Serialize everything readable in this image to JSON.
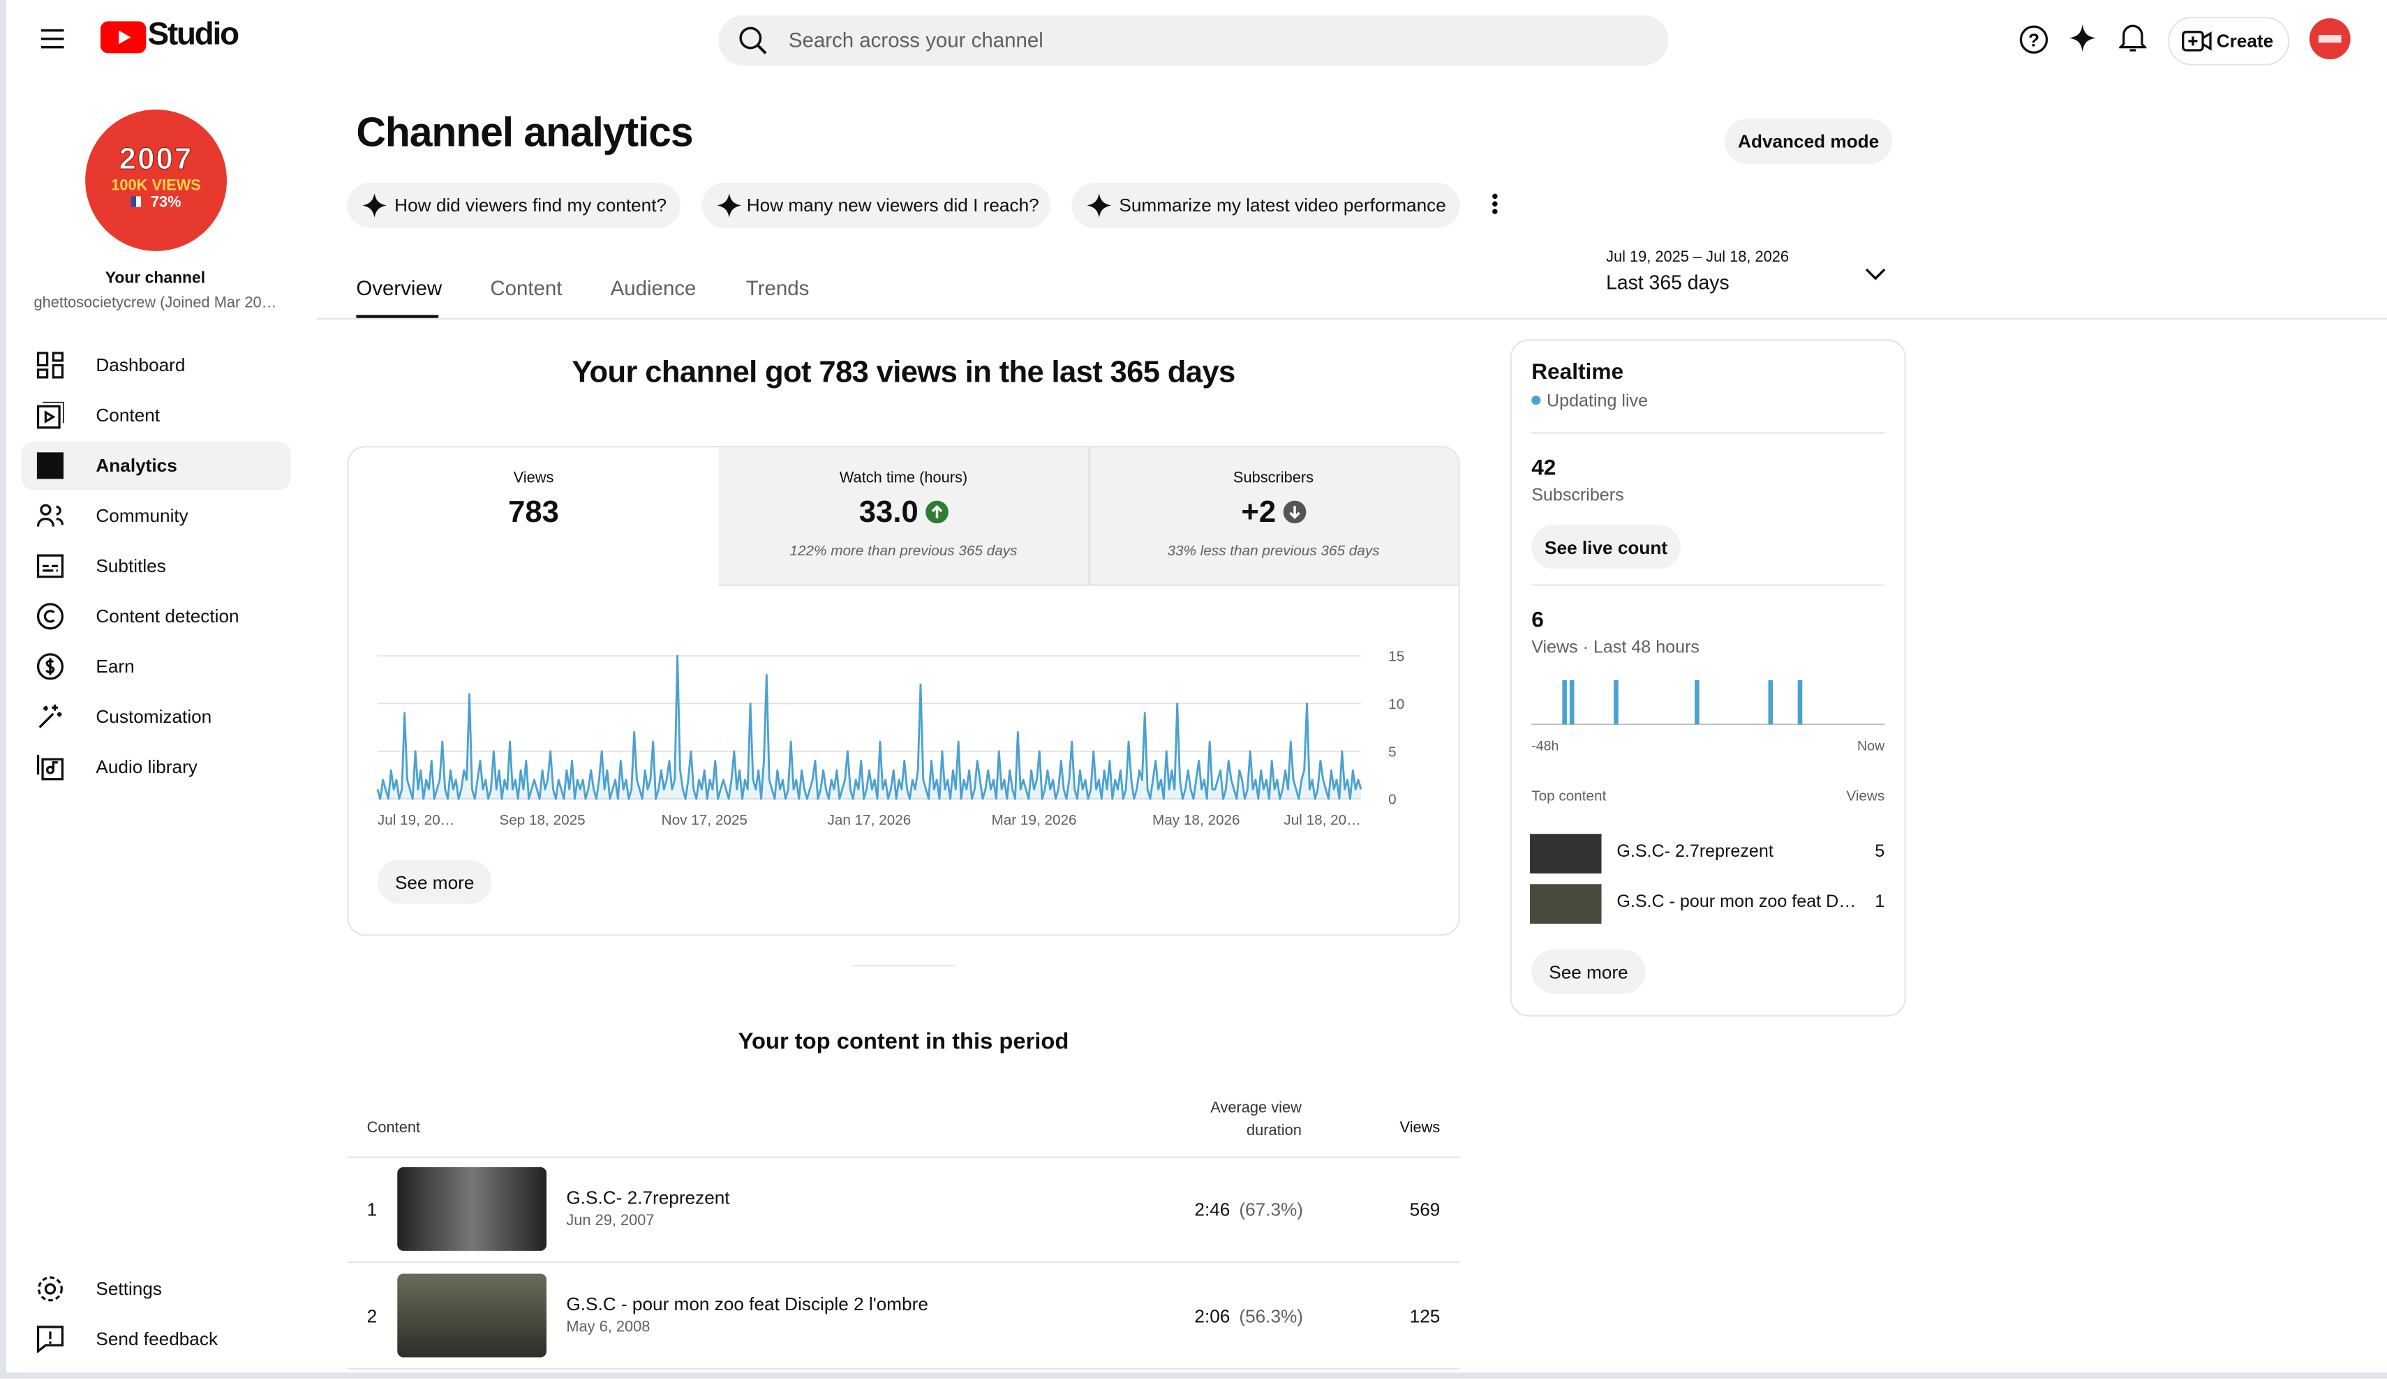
{
  "header": {
    "logo": "Studio",
    "search_placeholder": "Search across your channel",
    "create": "Create"
  },
  "sidebar": {
    "avatar": {
      "year": "2007",
      "badge": "100K VIEWS",
      "pct": "73%"
    },
    "channel_title": "Your channel",
    "channel_name": "ghettosocietycrew (Joined Mar 20…",
    "nav": [
      "Dashboard",
      "Content",
      "Analytics",
      "Community",
      "Subtitles",
      "Content detection",
      "Earn",
      "Customization",
      "Audio library"
    ],
    "footer_nav": [
      "Settings",
      "Send feedback"
    ]
  },
  "main": {
    "title": "Channel analytics",
    "advanced": "Advanced mode",
    "suggestions": [
      "How did viewers find my content?",
      "How many new viewers did I reach?",
      "Summarize my latest video performance"
    ],
    "tabs": [
      "Overview",
      "Content",
      "Audience",
      "Trends"
    ],
    "date_range": "Jul 19, 2025 – Jul 18, 2026",
    "period": "Last 365 days",
    "headline": "Your channel got 783 views in the last 365 days",
    "metrics": [
      {
        "label": "Views",
        "value": "783"
      },
      {
        "label": "Watch time (hours)",
        "value": "33.0",
        "note": "122% more than previous 365 days"
      },
      {
        "label": "Subscribers",
        "value": "+2",
        "note": "33% less than previous 365 days"
      }
    ],
    "see_more": "See more",
    "top_content": {
      "title": "Your top content in this period",
      "columns": [
        "Content",
        "Average view duration",
        "Views"
      ],
      "rows": [
        {
          "rank": 1,
          "title": "G.S.C- 2.7reprezent",
          "date": "Jun 29, 2007",
          "duration": "2:46",
          "percent": "(67.3%)",
          "views": 569
        },
        {
          "rank": 2,
          "title": "G.S.C - pour mon zoo feat Disciple 2 l'ombre",
          "date": "May 6, 2008",
          "duration": "2:06",
          "percent": "(56.3%)",
          "views": 125
        }
      ]
    }
  },
  "realtime": {
    "title": "Realtime",
    "status": "Updating live",
    "subscribers": 42,
    "subscribers_label": "Subscribers",
    "see_live": "See live count",
    "views": 6,
    "views_label": "Views · Last 48 hours",
    "top_title": "Top content",
    "top_views_label": "Views",
    "top": [
      {
        "title": "G.S.C- 2.7reprezent",
        "views": 5
      },
      {
        "title": "G.S.C - pour mon zoo feat D…",
        "views": 1
      }
    ],
    "see_more": "See more"
  },
  "chart_data": [
    {
      "type": "line",
      "color": "#4ba1cf",
      "ylim": [
        0,
        15
      ],
      "yticks": [
        0,
        5,
        10,
        15
      ],
      "grid": true,
      "categories": [
        "Jul 19, 20…",
        null,
        null,
        null,
        null,
        null,
        null,
        null,
        null,
        null,
        null,
        null,
        null,
        null,
        null,
        null,
        null,
        null,
        null,
        null,
        null,
        null,
        null,
        null,
        null,
        null,
        null,
        null,
        null,
        null,
        null,
        null,
        null,
        null,
        null,
        null,
        null,
        null,
        null,
        null,
        null,
        null,
        null,
        null,
        null,
        null,
        null,
        null,
        null,
        null,
        null,
        null,
        null,
        null,
        null,
        null,
        null,
        null,
        null,
        null,
        null,
        "Sep 18, 2025",
        null,
        null,
        null,
        null,
        null,
        null,
        null,
        null,
        null,
        null,
        null,
        null,
        null,
        null,
        null,
        null,
        null,
        null,
        null,
        null,
        null,
        null,
        null,
        null,
        null,
        null,
        null,
        null,
        null,
        null,
        null,
        null,
        null,
        null,
        null,
        null,
        null,
        null,
        null,
        null,
        null,
        null,
        null,
        null,
        null,
        null,
        null,
        null,
        null,
        null,
        null,
        null,
        null,
        null,
        null,
        null,
        null,
        null,
        null,
        "Nov 17, 2025",
        null,
        null,
        null,
        null,
        null,
        null,
        null,
        null,
        null,
        null,
        null,
        null,
        null,
        null,
        null,
        null,
        null,
        null,
        null,
        null,
        null,
        null,
        null,
        null,
        null,
        null,
        null,
        null,
        null,
        null,
        null,
        null,
        null,
        null,
        null,
        null,
        null,
        null,
        null,
        null,
        null,
        null,
        null,
        null,
        null,
        null,
        null,
        null,
        null,
        null,
        null,
        null,
        null,
        null,
        null,
        null,
        null,
        null,
        null,
        null,
        "Jan 17, 2026",
        null,
        null,
        null,
        null,
        null,
        null,
        null,
        null,
        null,
        null,
        null,
        null,
        null,
        null,
        null,
        null,
        null,
        null,
        null,
        null,
        null,
        null,
        null,
        null,
        null,
        null,
        null,
        null,
        null,
        null,
        null,
        null,
        null,
        null,
        null,
        null,
        null,
        null,
        null,
        null,
        null,
        null,
        null,
        null,
        null,
        null,
        null,
        null,
        null,
        null,
        null,
        null,
        null,
        null,
        null,
        null,
        null,
        null,
        null,
        null,
        "Mar 19, 2026",
        null,
        null,
        null,
        null,
        null,
        null,
        null,
        null,
        null,
        null,
        null,
        null,
        null,
        null,
        null,
        null,
        null,
        null,
        null,
        null,
        null,
        null,
        null,
        null,
        null,
        null,
        null,
        null,
        null,
        null,
        null,
        null,
        null,
        null,
        null,
        null,
        null,
        null,
        null,
        null,
        null,
        null,
        null,
        null,
        null,
        null,
        null,
        null,
        null,
        null,
        null,
        null,
        null,
        null,
        null,
        null,
        null,
        null,
        null,
        "May 18, 2026",
        null,
        null,
        null,
        null,
        null,
        null,
        null,
        null,
        null,
        null,
        null,
        null,
        null,
        null,
        null,
        null,
        null,
        null,
        null,
        null,
        null,
        null,
        null,
        null,
        null,
        null,
        null,
        null,
        null,
        null,
        null,
        null,
        null,
        null,
        null,
        null,
        null,
        null,
        null,
        null,
        null,
        null,
        null,
        null,
        null,
        null,
        null,
        null,
        null,
        null,
        null,
        null,
        null,
        null,
        null,
        null,
        null,
        null,
        null,
        null,
        "Jul 18, 20…"
      ],
      "values": [
        1,
        0,
        2,
        1,
        0,
        3,
        1,
        2,
        0,
        1,
        9,
        2,
        1,
        0,
        5,
        1,
        3,
        0,
        2,
        1,
        4,
        0,
        1,
        2,
        6,
        1,
        0,
        3,
        1,
        2,
        0,
        1,
        3,
        2,
        11,
        1,
        0,
        2,
        4,
        1,
        2,
        0,
        1,
        5,
        1,
        3,
        0,
        2,
        1,
        6,
        1,
        2,
        0,
        3,
        1,
        4,
        0,
        1,
        2,
        1,
        0,
        3,
        1,
        2,
        5,
        1,
        0,
        2,
        1,
        0,
        3,
        1,
        4,
        0,
        2,
        1,
        2,
        0,
        1,
        3,
        1,
        0,
        2,
        5,
        1,
        3,
        0,
        1,
        2,
        0,
        4,
        1,
        2,
        0,
        1,
        7,
        2,
        1,
        0,
        3,
        1,
        2,
        6,
        0,
        1,
        3,
        1,
        2,
        4,
        1,
        2,
        15,
        3,
        1,
        0,
        2,
        5,
        1,
        0,
        2,
        1,
        3,
        0,
        2,
        1,
        4,
        0,
        1,
        2,
        1,
        0,
        2,
        5,
        1,
        3,
        0,
        2,
        1,
        10,
        2,
        1,
        3,
        0,
        4,
        13,
        2,
        1,
        0,
        3,
        1,
        2,
        0,
        1,
        6,
        1,
        2,
        0,
        3,
        1,
        0,
        1,
        2,
        4,
        0,
        1,
        3,
        1,
        0,
        2,
        1,
        3,
        0,
        1,
        2,
        5,
        1,
        0,
        2,
        1,
        4,
        0,
        1,
        3,
        1,
        2,
        0,
        6,
        1,
        2,
        0,
        1,
        3,
        0,
        2,
        1,
        4,
        1,
        0,
        2,
        1,
        3,
        12,
        2,
        1,
        0,
        4,
        1,
        2,
        0,
        5,
        1,
        2,
        0,
        3,
        1,
        6,
        0,
        2,
        1,
        3,
        0,
        1,
        4,
        2,
        0,
        1,
        3,
        1,
        2,
        0,
        5,
        1,
        2,
        0,
        3,
        1,
        0,
        7,
        1,
        2,
        1,
        0,
        3,
        1,
        2,
        5,
        0,
        1,
        3,
        1,
        2,
        0,
        1,
        4,
        1,
        0,
        2,
        6,
        1,
        0,
        3,
        1,
        2,
        0,
        1,
        5,
        1,
        2,
        0,
        3,
        1,
        4,
        0,
        2,
        1,
        3,
        0,
        1,
        6,
        2,
        0,
        1,
        3,
        2,
        9,
        1,
        0,
        2,
        4,
        1,
        2,
        0,
        5,
        1,
        3,
        1,
        10,
        2,
        0,
        1,
        3,
        1,
        0,
        2,
        4,
        1,
        2,
        0,
        6,
        1,
        1,
        2,
        3,
        0,
        1,
        4,
        2,
        1,
        0,
        3,
        2,
        0,
        1,
        5,
        1,
        2,
        0,
        3,
        1,
        2,
        0,
        4,
        1,
        2,
        0,
        1,
        3,
        1,
        6,
        2,
        1,
        0,
        2,
        3,
        10,
        1,
        2,
        0,
        1,
        4,
        2,
        1,
        0,
        3,
        1,
        2,
        0,
        5,
        1,
        2,
        0,
        3,
        1,
        2,
        1
      ]
    },
    {
      "type": "bar",
      "color": "#4ba1cf",
      "ylim": [
        0,
        1
      ],
      "categories": [
        "-48h",
        null,
        null,
        null,
        null,
        null,
        null,
        null,
        null,
        null,
        null,
        null,
        null,
        null,
        null,
        null,
        null,
        null,
        null,
        null,
        null,
        null,
        null,
        null,
        null,
        null,
        null,
        null,
        null,
        null,
        null,
        null,
        null,
        null,
        null,
        null,
        null,
        null,
        null,
        null,
        null,
        null,
        null,
        null,
        null,
        null,
        null,
        "Now"
      ],
      "values": [
        0,
        0,
        0,
        0,
        1,
        1,
        0,
        0,
        0,
        0,
        0,
        1,
        0,
        0,
        0,
        0,
        0,
        0,
        0,
        0,
        0,
        0,
        1,
        0,
        0,
        0,
        0,
        0,
        0,
        0,
        0,
        0,
        1,
        0,
        0,
        0,
        1,
        0,
        0,
        0,
        0,
        0,
        0,
        0,
        0,
        0,
        0,
        0
      ]
    }
  ]
}
